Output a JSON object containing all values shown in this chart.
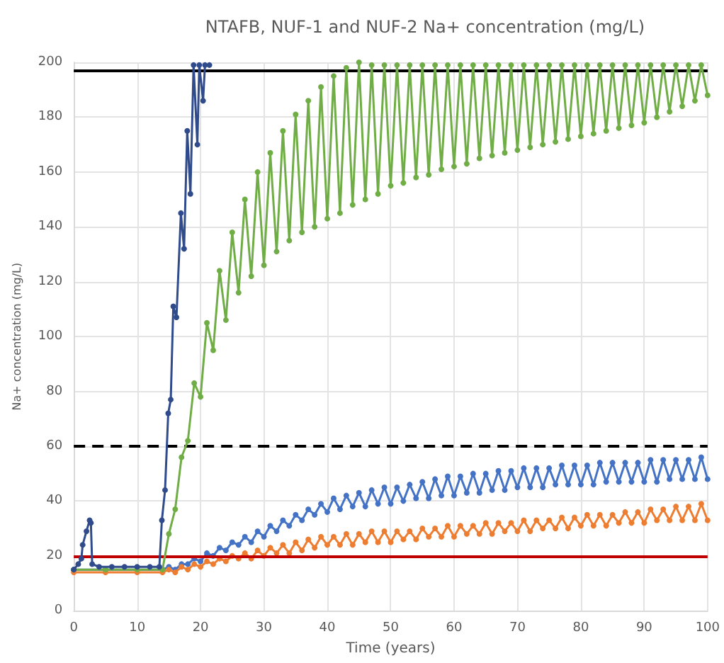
{
  "chart_data": {
    "type": "line",
    "title": "NTAFB, NUF-1 and NUF-2 Na+ concentration (mg/L)",
    "xlabel": "Time (years)",
    "ylabel": "Na+ concentration (mg/L)",
    "x": [
      0,
      5,
      10,
      14,
      15,
      16,
      17,
      18,
      19,
      20,
      21,
      22,
      23,
      24,
      25,
      26,
      27,
      28,
      29,
      30,
      31,
      32,
      33,
      34,
      35,
      36,
      37,
      38,
      39,
      40,
      41,
      42,
      43,
      44,
      45,
      46,
      47,
      48,
      49,
      50,
      51,
      52,
      53,
      54,
      55,
      56,
      57,
      58,
      59,
      60,
      61,
      62,
      63,
      64,
      65,
      66,
      67,
      68,
      69,
      70,
      71,
      72,
      73,
      74,
      75,
      76,
      77,
      78,
      79,
      80,
      81,
      82,
      83,
      84,
      85,
      86,
      87,
      88,
      89,
      90,
      91,
      92,
      93,
      94,
      95,
      96,
      97,
      98,
      99,
      100
    ],
    "series": [
      {
        "color": "#4472c4",
        "values": [
          15,
          15,
          15,
          15,
          16,
          15,
          17,
          17,
          19,
          18,
          21,
          20,
          23,
          22,
          25,
          24,
          27,
          25,
          29,
          27,
          31,
          29,
          33,
          31,
          35,
          33,
          37,
          35,
          39,
          36,
          41,
          37,
          42,
          38,
          43,
          38,
          44,
          39,
          45,
          39,
          45,
          40,
          46,
          41,
          47,
          41,
          48,
          42,
          49,
          42,
          49,
          43,
          50,
          43,
          50,
          44,
          51,
          44,
          51,
          45,
          52,
          45,
          52,
          45,
          52,
          46,
          53,
          46,
          53,
          46,
          53,
          46,
          54,
          47,
          54,
          47,
          54,
          47,
          54,
          47,
          55,
          47,
          55,
          48,
          55,
          48,
          55,
          48,
          56,
          48
        ]
      },
      {
        "color": "#ed7d31",
        "values": [
          14,
          14,
          14,
          14,
          15,
          14,
          16,
          15,
          17,
          16,
          18,
          17,
          19,
          18,
          20,
          19,
          21,
          19,
          22,
          20,
          23,
          21,
          24,
          21,
          25,
          22,
          26,
          23,
          27,
          24,
          27,
          24,
          28,
          24,
          28,
          25,
          29,
          25,
          29,
          25,
          29,
          26,
          29,
          26,
          30,
          27,
          30,
          27,
          31,
          27,
          31,
          28,
          31,
          28,
          32,
          28,
          32,
          29,
          32,
          29,
          33,
          29,
          33,
          30,
          33,
          30,
          34,
          30,
          34,
          31,
          35,
          31,
          35,
          31,
          35,
          32,
          36,
          32,
          36,
          32,
          37,
          33,
          37,
          33,
          38,
          33,
          38,
          33,
          39,
          33
        ]
      },
      {
        "color": "#70ad47",
        "values": [
          15,
          15,
          15,
          15,
          28,
          37,
          56,
          62,
          83,
          78,
          105,
          95,
          124,
          106,
          138,
          116,
          150,
          122,
          160,
          126,
          167,
          131,
          175,
          135,
          181,
          138,
          186,
          140,
          191,
          143,
          195,
          145,
          198,
          148,
          200,
          150,
          199,
          152,
          199,
          155,
          199,
          156,
          199,
          158,
          199,
          159,
          199,
          161,
          199,
          162,
          199,
          163,
          199,
          165,
          199,
          166,
          199,
          167,
          199,
          168,
          199,
          169,
          199,
          170,
          199,
          171,
          199,
          172,
          199,
          173,
          199,
          174,
          199,
          175,
          199,
          176,
          199,
          177,
          199,
          178,
          199,
          180,
          199,
          182,
          199,
          184,
          199,
          186,
          199,
          188
        ]
      },
      {
        "color": "#2f4b8c",
        "x": [
          0,
          0.7,
          1.2,
          1.4,
          2,
          2.5,
          2.7,
          2.9,
          4,
          6,
          8,
          10,
          12,
          13.5,
          13.9,
          14.4,
          14.9,
          15.3,
          15.7,
          16.2,
          16.9,
          17.4,
          17.9,
          18.4,
          18.9,
          19.5,
          19.8,
          20.4,
          20.7,
          21.4
        ],
        "values": [
          15,
          17,
          19,
          24,
          29,
          33,
          32,
          17,
          16,
          16,
          16,
          16,
          16,
          16,
          33,
          44,
          72,
          77,
          111,
          107,
          145,
          132,
          175,
          152,
          199,
          170,
          199,
          186,
          199,
          199
        ]
      }
    ],
    "xlim": [
      0,
      100
    ],
    "xticks": [
      0,
      10,
      20,
      30,
      40,
      50,
      60,
      70,
      80,
      90,
      100
    ],
    "ylim": [
      0,
      200
    ],
    "yticks": [
      0,
      20,
      40,
      60,
      80,
      100,
      120,
      140,
      160,
      180,
      200
    ],
    "grid": true,
    "marker": "circle",
    "line_style": "solid",
    "ref_lines": [
      {
        "axis": "y",
        "value": 197,
        "color": "#000000",
        "line_style": "solid"
      },
      {
        "axis": "y",
        "value": 60,
        "color": "#000000",
        "line_style": "dashed"
      },
      {
        "axis": "y",
        "value": 20,
        "color": "#c00000",
        "line_style": "solid"
      }
    ]
  }
}
